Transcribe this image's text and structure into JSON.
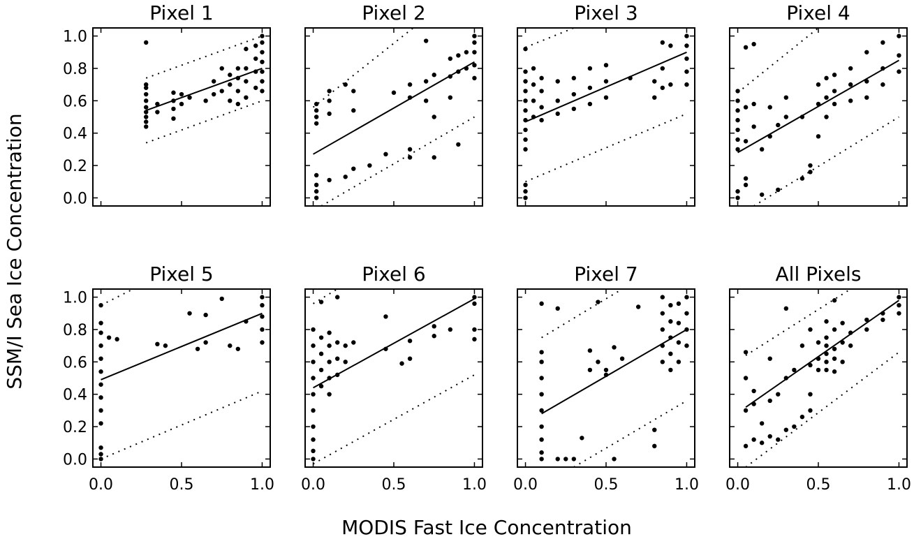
{
  "figure": {
    "xlabel": "MODIS Fast Ice Concentration",
    "ylabel": "SSM/I Sea Ice Concentration"
  },
  "axes": {
    "xlim": [
      -0.05,
      1.05
    ],
    "ylim": [
      -0.05,
      1.05
    ],
    "xticks": [
      {
        "value": 0,
        "label": "0.0"
      },
      {
        "value": 0.5,
        "label": "0.5"
      },
      {
        "value": 1,
        "label": "1.0"
      }
    ],
    "yticks": [
      {
        "value": 0,
        "label": "0.0"
      },
      {
        "value": 0.2,
        "label": "0.2"
      },
      {
        "value": 0.4,
        "label": "0.4"
      },
      {
        "value": 0.6,
        "label": "0.6"
      },
      {
        "value": 0.8,
        "label": "0.8"
      },
      {
        "value": 1,
        "label": "1.0"
      }
    ]
  },
  "chart_data": [
    {
      "type": "scatter",
      "title": "Pixel 1",
      "color": "#000000",
      "x": [
        0.28,
        0.28,
        0.28,
        0.28,
        0.28,
        0.28,
        0.28,
        0.28,
        0.28,
        0.28,
        0.35,
        0.35,
        0.45,
        0.45,
        0.45,
        0.45,
        0.5,
        0.5,
        0.55,
        0.65,
        0.7,
        0.7,
        0.75,
        0.75,
        0.8,
        0.8,
        0.8,
        0.85,
        0.85,
        0.85,
        0.85,
        0.9,
        0.9,
        0.9,
        0.9,
        0.96,
        0.96,
        0.96,
        0.96,
        1.0,
        1.0,
        1.0,
        1.0,
        1.0,
        1.0,
        1.0
      ],
      "values": [
        0.44,
        0.47,
        0.5,
        0.53,
        0.56,
        0.6,
        0.64,
        0.68,
        0.7,
        0.96,
        0.53,
        0.58,
        0.49,
        0.55,
        0.6,
        0.65,
        0.58,
        0.64,
        0.62,
        0.6,
        0.64,
        0.72,
        0.66,
        0.8,
        0.6,
        0.7,
        0.76,
        0.58,
        0.66,
        0.74,
        0.8,
        0.62,
        0.72,
        0.8,
        0.92,
        0.68,
        0.78,
        0.86,
        0.94,
        0.66,
        0.72,
        0.78,
        0.84,
        0.9,
        0.96,
        1.0
      ],
      "fit": {
        "x": [
          0.28,
          1.0
        ],
        "y": [
          0.54,
          0.8
        ]
      },
      "bounds": [
        {
          "x": [
            0.28,
            1.0
          ],
          "y": [
            0.74,
            1.0
          ]
        },
        {
          "x": [
            0.28,
            1.0
          ],
          "y": [
            0.34,
            0.6
          ]
        }
      ]
    },
    {
      "type": "scatter",
      "title": "Pixel 2",
      "color": "#000000",
      "x": [
        0.02,
        0.02,
        0.02,
        0.02,
        0.02,
        0.02,
        0.02,
        0.02,
        0.1,
        0.1,
        0.1,
        0.1,
        0.2,
        0.2,
        0.25,
        0.25,
        0.25,
        0.35,
        0.45,
        0.5,
        0.6,
        0.6,
        0.6,
        0.6,
        0.7,
        0.7,
        0.7,
        0.75,
        0.75,
        0.75,
        0.85,
        0.85,
        0.85,
        0.9,
        0.9,
        0.9,
        0.95,
        0.95,
        1.0,
        1.0,
        1.0,
        1.0,
        1.0
      ],
      "values": [
        0.0,
        0.04,
        0.08,
        0.14,
        0.46,
        0.5,
        0.54,
        0.58,
        0.11,
        0.52,
        0.6,
        0.66,
        0.7,
        0.13,
        0.18,
        0.54,
        0.66,
        0.2,
        0.27,
        0.65,
        0.25,
        0.3,
        0.62,
        0.7,
        0.6,
        0.72,
        0.97,
        0.25,
        0.5,
        0.76,
        0.62,
        0.75,
        0.86,
        0.33,
        0.78,
        0.88,
        0.8,
        0.9,
        0.74,
        0.82,
        0.9,
        0.96,
        1.0
      ],
      "fit": {
        "x": [
          0.0,
          1.0
        ],
        "y": [
          0.27,
          0.84
        ]
      },
      "bounds": [
        {
          "x": [
            0.0,
            0.62
          ],
          "y": [
            0.56,
            1.05
          ]
        },
        {
          "x": [
            0.05,
            1.0
          ],
          "y": [
            -0.05,
            0.5
          ]
        }
      ]
    },
    {
      "type": "scatter",
      "title": "Pixel 3",
      "color": "#000000",
      "x": [
        0.0,
        0.0,
        0.0,
        0.0,
        0.0,
        0.0,
        0.0,
        0.0,
        0.0,
        0.0,
        0.0,
        0.0,
        0.0,
        0.05,
        0.05,
        0.05,
        0.05,
        0.1,
        0.1,
        0.1,
        0.1,
        0.2,
        0.2,
        0.2,
        0.3,
        0.3,
        0.3,
        0.4,
        0.4,
        0.4,
        0.5,
        0.5,
        0.5,
        0.65,
        0.8,
        0.8,
        0.85,
        0.85,
        0.85,
        0.9,
        0.9,
        1.0,
        1.0,
        1.0,
        1.0,
        1.0
      ],
      "values": [
        0.0,
        0.04,
        0.08,
        0.3,
        0.36,
        0.42,
        0.48,
        0.54,
        0.6,
        0.66,
        0.72,
        0.78,
        0.92,
        0.5,
        0.6,
        0.7,
        0.8,
        0.48,
        0.56,
        0.66,
        0.74,
        0.52,
        0.6,
        0.72,
        0.55,
        0.64,
        0.74,
        0.58,
        0.68,
        0.8,
        0.62,
        0.72,
        0.82,
        0.74,
        0.62,
        0.72,
        0.68,
        0.8,
        0.96,
        0.7,
        0.94,
        0.7,
        0.78,
        0.86,
        0.94,
        1.0
      ],
      "fit": {
        "x": [
          0.0,
          1.0
        ],
        "y": [
          0.47,
          0.9
        ]
      },
      "bounds": [
        {
          "x": [
            0.0,
            0.3
          ],
          "y": [
            0.93,
            1.05
          ]
        },
        {
          "x": [
            0.0,
            1.0
          ],
          "y": [
            0.1,
            0.52
          ]
        }
      ]
    },
    {
      "type": "scatter",
      "title": "Pixel 4",
      "color": "#000000",
      "x": [
        0.0,
        0.0,
        0.0,
        0.0,
        0.0,
        0.0,
        0.0,
        0.0,
        0.0,
        0.05,
        0.05,
        0.05,
        0.05,
        0.05,
        0.1,
        0.1,
        0.1,
        0.15,
        0.15,
        0.2,
        0.2,
        0.25,
        0.25,
        0.3,
        0.3,
        0.4,
        0.4,
        0.45,
        0.45,
        0.5,
        0.5,
        0.5,
        0.55,
        0.55,
        0.55,
        0.6,
        0.6,
        0.6,
        0.7,
        0.7,
        0.7,
        0.8,
        0.8,
        0.8,
        0.9,
        0.9,
        0.9,
        1.0,
        1.0,
        1.0
      ],
      "values": [
        0.0,
        0.04,
        0.3,
        0.36,
        0.42,
        0.48,
        0.54,
        0.6,
        0.66,
        0.08,
        0.12,
        0.35,
        0.56,
        0.93,
        0.44,
        0.58,
        0.95,
        0.3,
        0.02,
        0.38,
        0.56,
        0.05,
        0.45,
        0.5,
        0.62,
        0.12,
        0.5,
        0.2,
        0.16,
        0.38,
        0.58,
        0.7,
        0.5,
        0.62,
        0.74,
        0.58,
        0.66,
        0.76,
        0.6,
        0.7,
        0.8,
        0.62,
        0.72,
        0.9,
        0.7,
        0.8,
        0.96,
        0.78,
        0.88,
        1.0
      ],
      "fit": {
        "x": [
          0.0,
          1.0
        ],
        "y": [
          0.28,
          0.85
        ]
      },
      "bounds": [
        {
          "x": [
            0.0,
            0.5
          ],
          "y": [
            0.65,
            1.05
          ]
        },
        {
          "x": [
            0.1,
            1.0
          ],
          "y": [
            -0.05,
            0.5
          ]
        }
      ]
    },
    {
      "type": "scatter",
      "title": "Pixel 5",
      "color": "#000000",
      "x": [
        0.0,
        0.0,
        0.0,
        0.0,
        0.0,
        0.0,
        0.0,
        0.0,
        0.0,
        0.0,
        0.0,
        0.0,
        0.0,
        0.05,
        0.1,
        0.35,
        0.4,
        0.55,
        0.6,
        0.65,
        0.65,
        0.75,
        0.8,
        0.85,
        0.9,
        1.0,
        1.0,
        1.0,
        1.0,
        1.0
      ],
      "values": [
        0.0,
        0.03,
        0.07,
        0.22,
        0.3,
        0.38,
        0.46,
        0.54,
        0.62,
        0.7,
        0.78,
        0.84,
        0.95,
        0.75,
        0.74,
        0.71,
        0.7,
        0.9,
        0.68,
        0.72,
        0.89,
        0.99,
        0.7,
        0.68,
        0.85,
        0.72,
        0.8,
        0.88,
        0.95,
        1.0
      ],
      "fit": {
        "x": [
          0.0,
          1.0
        ],
        "y": [
          0.49,
          0.9
        ]
      },
      "bounds": [
        {
          "x": [
            0.0,
            0.2
          ],
          "y": [
            0.95,
            1.05
          ]
        },
        {
          "x": [
            0.0,
            1.0
          ],
          "y": [
            0.0,
            0.42
          ]
        }
      ]
    },
    {
      "type": "scatter",
      "title": "Pixel 6",
      "color": "#000000",
      "x": [
        0.0,
        0.0,
        0.0,
        0.0,
        0.0,
        0.0,
        0.0,
        0.0,
        0.0,
        0.0,
        0.05,
        0.05,
        0.05,
        0.05,
        0.05,
        0.1,
        0.1,
        0.1,
        0.1,
        0.1,
        0.15,
        0.15,
        0.15,
        0.15,
        0.2,
        0.2,
        0.25,
        0.45,
        0.45,
        0.55,
        0.6,
        0.6,
        0.75,
        0.75,
        0.85,
        1.0,
        1.0,
        1.0,
        1.0
      ],
      "values": [
        0.0,
        0.05,
        0.12,
        0.2,
        0.3,
        0.4,
        0.5,
        0.6,
        0.7,
        0.8,
        0.45,
        0.55,
        0.65,
        0.75,
        0.97,
        0.4,
        0.5,
        0.6,
        0.7,
        0.78,
        0.52,
        0.62,
        0.72,
        1.0,
        0.6,
        0.7,
        0.72,
        0.68,
        0.88,
        0.59,
        0.62,
        0.73,
        0.76,
        0.82,
        0.8,
        0.74,
        0.8,
        0.96,
        1.0
      ],
      "fit": {
        "x": [
          0.0,
          1.0
        ],
        "y": [
          0.44,
          0.99
        ]
      },
      "bounds": [
        {
          "x": [
            0.0,
            0.15
          ],
          "y": [
            0.96,
            1.05
          ]
        },
        {
          "x": [
            0.0,
            1.0
          ],
          "y": [
            -0.03,
            0.52
          ]
        }
      ]
    },
    {
      "type": "scatter",
      "title": "Pixel 7",
      "color": "#000000",
      "x": [
        0.1,
        0.1,
        0.1,
        0.1,
        0.1,
        0.1,
        0.1,
        0.1,
        0.1,
        0.1,
        0.2,
        0.2,
        0.25,
        0.3,
        0.35,
        0.4,
        0.4,
        0.45,
        0.45,
        0.5,
        0.5,
        0.55,
        0.55,
        0.6,
        0.7,
        0.8,
        0.8,
        0.85,
        0.85,
        0.85,
        0.85,
        0.85,
        0.9,
        0.9,
        0.9,
        0.9,
        0.9,
        0.95,
        0.95,
        0.95,
        0.95,
        1.0,
        1.0,
        1.0,
        1.0
      ],
      "values": [
        0.0,
        0.04,
        0.12,
        0.2,
        0.3,
        0.4,
        0.5,
        0.6,
        0.66,
        0.96,
        0.0,
        0.93,
        0.0,
        0.0,
        0.13,
        0.67,
        0.55,
        0.6,
        0.97,
        0.55,
        0.52,
        0.69,
        0.0,
        0.62,
        0.94,
        0.18,
        0.08,
        0.6,
        0.7,
        0.8,
        0.9,
        1.0,
        0.55,
        0.65,
        0.75,
        0.85,
        0.95,
        0.6,
        0.72,
        0.84,
        0.96,
        0.7,
        0.8,
        0.9,
        1.0
      ],
      "fit": {
        "x": [
          0.1,
          1.0
        ],
        "y": [
          0.28,
          0.8
        ]
      },
      "bounds": [
        {
          "x": [
            0.1,
            0.6
          ],
          "y": [
            0.75,
            1.05
          ]
        },
        {
          "x": [
            0.3,
            1.0
          ],
          "y": [
            -0.05,
            0.36
          ]
        }
      ]
    },
    {
      "type": "scatter",
      "title": "All Pixels",
      "color": "#000000",
      "x": [
        0.05,
        0.05,
        0.05,
        0.05,
        0.1,
        0.1,
        0.1,
        0.15,
        0.15,
        0.2,
        0.2,
        0.2,
        0.25,
        0.25,
        0.3,
        0.3,
        0.3,
        0.35,
        0.35,
        0.4,
        0.4,
        0.45,
        0.45,
        0.45,
        0.45,
        0.5,
        0.5,
        0.5,
        0.55,
        0.55,
        0.55,
        0.55,
        0.55,
        0.55,
        0.6,
        0.6,
        0.6,
        0.6,
        0.6,
        0.65,
        0.65,
        0.65,
        0.7,
        0.7,
        0.8,
        0.8,
        0.9,
        0.9,
        1.0,
        1.0,
        1.0
      ],
      "values": [
        0.08,
        0.3,
        0.5,
        0.66,
        0.12,
        0.42,
        0.34,
        0.1,
        0.22,
        0.14,
        0.36,
        0.62,
        0.12,
        0.4,
        0.18,
        0.5,
        0.93,
        0.2,
        0.55,
        0.26,
        0.7,
        0.3,
        0.4,
        0.58,
        0.8,
        0.55,
        0.62,
        0.72,
        0.55,
        0.6,
        0.65,
        0.7,
        0.75,
        0.85,
        0.54,
        0.62,
        0.68,
        0.8,
        0.98,
        0.6,
        0.72,
        0.84,
        0.7,
        0.78,
        0.8,
        0.86,
        0.86,
        0.9,
        0.9,
        0.95,
        1.0
      ],
      "fit": {
        "x": [
          0.05,
          1.0
        ],
        "y": [
          0.32,
          0.98
        ]
      },
      "bounds": [
        {
          "x": [
            0.05,
            0.7
          ],
          "y": [
            0.64,
            1.05
          ]
        },
        {
          "x": [
            0.05,
            1.0
          ],
          "y": [
            -0.05,
            0.66
          ]
        }
      ]
    }
  ]
}
